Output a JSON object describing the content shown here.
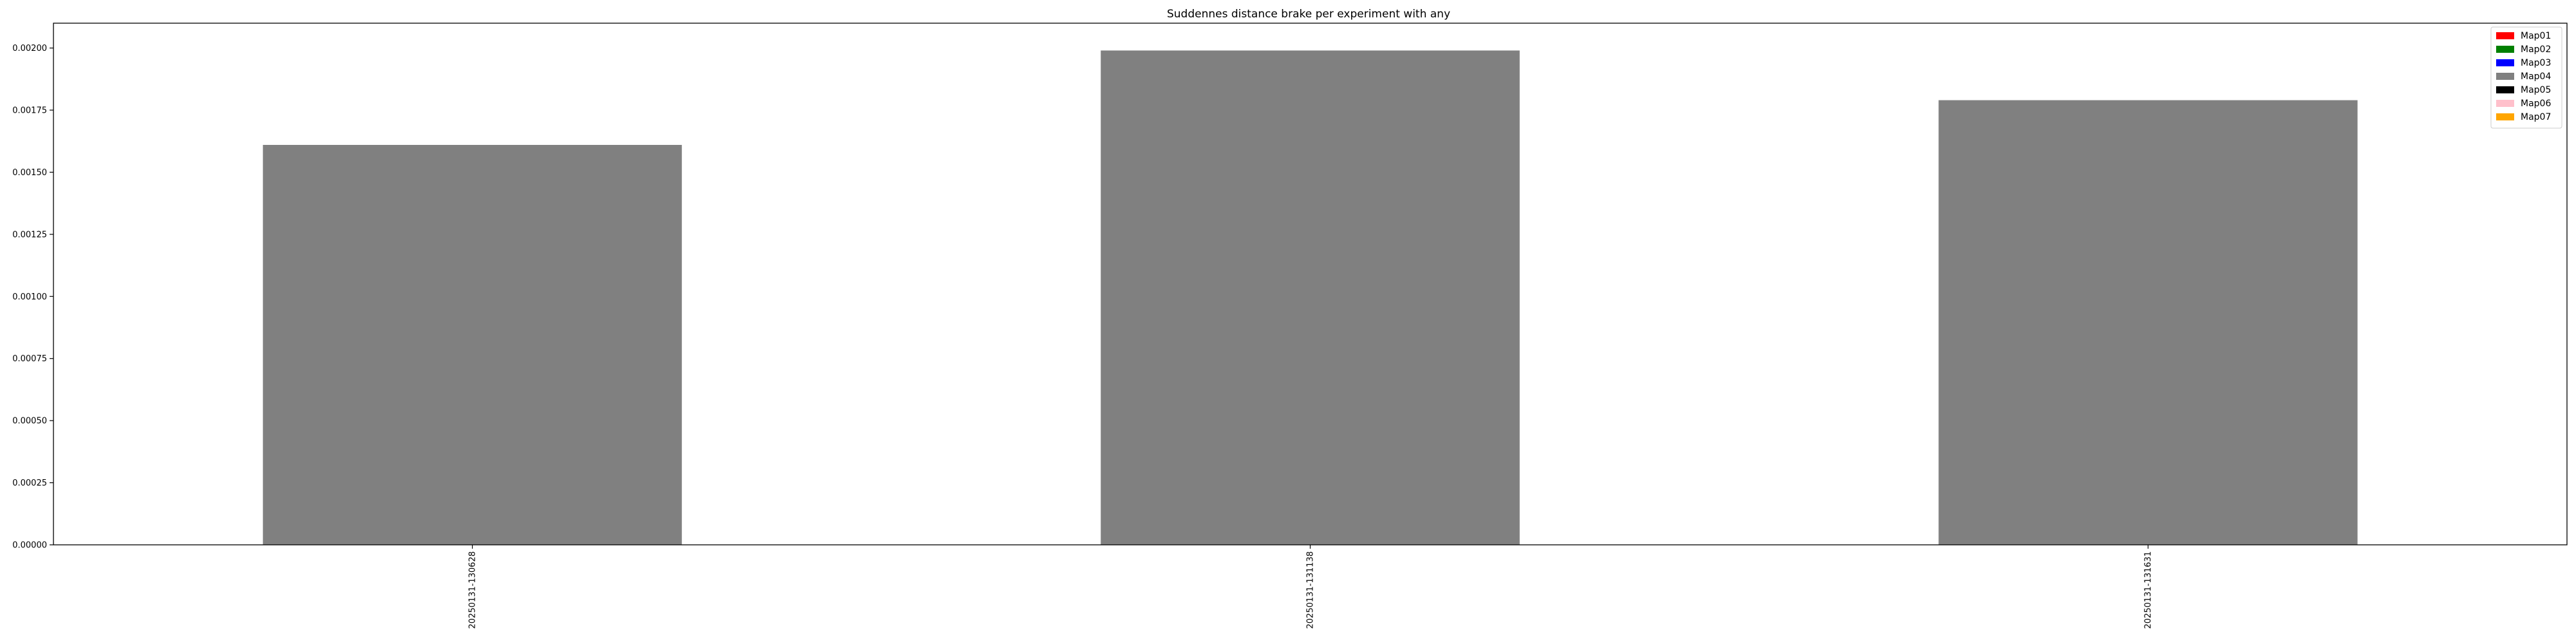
{
  "chart_data": {
    "type": "bar",
    "title": "Suddennes distance brake per experiment with any",
    "xlabel": "",
    "ylabel": "",
    "categories": [
      "20250131-130628",
      "20250131-131138",
      "20250131-131631"
    ],
    "values": [
      0.00161,
      0.00199,
      0.00179
    ],
    "bar_color": "#808080",
    "ylim": [
      0,
      0.0021
    ],
    "yticks": [
      0.0,
      0.00025,
      0.0005,
      0.00075,
      0.001,
      0.00125,
      0.0015,
      0.00175,
      0.002
    ],
    "ytick_labels": [
      "0.00000",
      "0.00025",
      "0.00050",
      "0.00075",
      "0.00100",
      "0.00125",
      "0.00150",
      "0.00175",
      "0.00200"
    ],
    "grid": false,
    "legend": {
      "placement": "top-right",
      "entries": [
        {
          "label": "Map01",
          "color": "#ff0000"
        },
        {
          "label": "Map02",
          "color": "#008000"
        },
        {
          "label": "Map03",
          "color": "#0000ff"
        },
        {
          "label": "Map04",
          "color": "#808080"
        },
        {
          "label": "Map05",
          "color": "#000000"
        },
        {
          "label": "Map06",
          "color": "#ffc0cb"
        },
        {
          "label": "Map07",
          "color": "#ffa500"
        }
      ]
    }
  }
}
